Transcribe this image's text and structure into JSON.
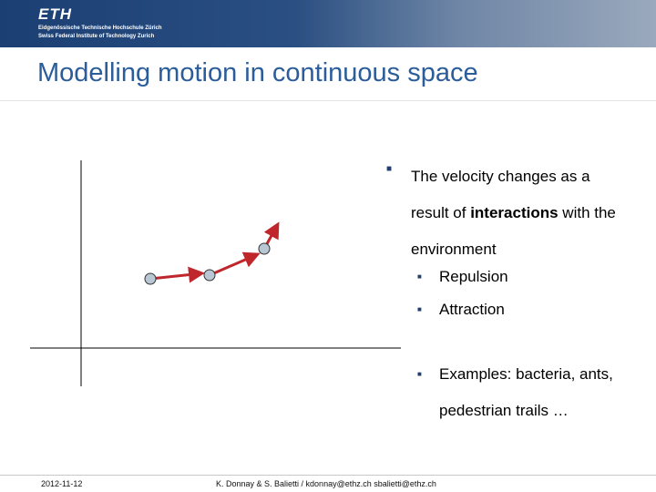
{
  "header": {
    "logo": "ETH",
    "line1": "Eidgenössische Technische Hochschule Zürich",
    "line2": "Swiss Federal Institute of Technology Zurich"
  },
  "title": "Modelling motion in continuous space",
  "bullet": {
    "before": "The velocity changes as a result of ",
    "bold": "interactions",
    "after": " with the environment"
  },
  "sub_bullets": [
    "Repulsion",
    "Attraction",
    "Examples: bacteria, ants, pedestrian trails …"
  ],
  "footer": {
    "date": "2012-11-12",
    "authors": "K. Donnay & S. Balietti / kdonnay@ethz.ch  sbalietti@ethz.ch"
  }
}
